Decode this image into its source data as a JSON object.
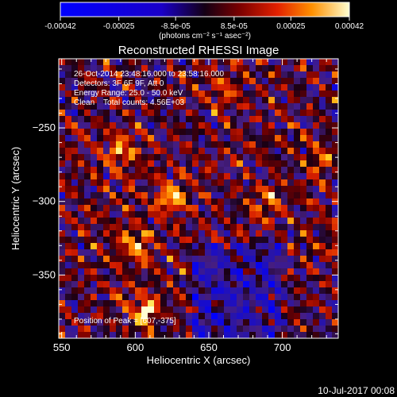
{
  "colorbar": {
    "tick_labels": [
      "-0.00042",
      "-0.00025",
      "-8.5e-05",
      "8.5e-05",
      "0.00025",
      "0.00042"
    ],
    "tick_values": [
      -0.00042,
      -0.00025,
      -8.5e-05,
      8.5e-05,
      0.00025,
      0.00042
    ],
    "range": [
      -0.00042,
      0.00042
    ],
    "units_label": "(photons cm⁻² s⁻¹ asec⁻²)"
  },
  "chart_data": {
    "type": "heatmap",
    "title": "Reconstructed RHESSI Image",
    "xlabel": "Heliocentric X (arcsec)",
    "ylabel": "Heliocentric Y (arcsec)",
    "xlim": [
      548,
      738
    ],
    "ylim": [
      -393,
      -203
    ],
    "x_ticks": [
      550,
      600,
      650,
      700
    ],
    "y_ticks": [
      -250,
      -300,
      -350
    ],
    "annotations": [
      "26-Oct-2014 23:48:16.000 to 23:58:16.000",
      "Detectors: 3F 6F 9F, Att 0",
      "Energy Range: 25.0 - 50.0 keV",
      "Clean    Total counts: 4.56E+03"
    ],
    "peak_label": "Position of Peak = [607,-375]",
    "peak_position": [
      607,
      -375
    ]
  },
  "footer": {
    "date_stamp": "10-Jul-2017 00:08"
  }
}
